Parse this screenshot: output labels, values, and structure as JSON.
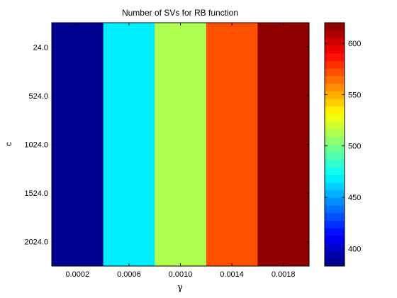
{
  "chart_data": {
    "type": "heatmap",
    "title": "Number of SVs for RB function",
    "xlabel": "γ",
    "ylabel": "c",
    "x": [
      "0.0002",
      "0.0006",
      "0.0010",
      "0.0014",
      "0.0018"
    ],
    "y": [
      "24.0",
      "524.0",
      "1024.0",
      "1524.0",
      "2024.0"
    ],
    "values": [
      [
        385,
        470,
        515,
        575,
        620
      ],
      [
        385,
        470,
        515,
        575,
        620
      ],
      [
        385,
        470,
        515,
        575,
        620
      ],
      [
        385,
        470,
        515,
        575,
        620
      ],
      [
        385,
        470,
        515,
        575,
        620
      ]
    ],
    "colorbar": {
      "range": [
        383,
        620
      ],
      "ticks": [
        400,
        450,
        500,
        550,
        600
      ],
      "levels": 32,
      "colormap": "jet"
    },
    "grid": false
  }
}
